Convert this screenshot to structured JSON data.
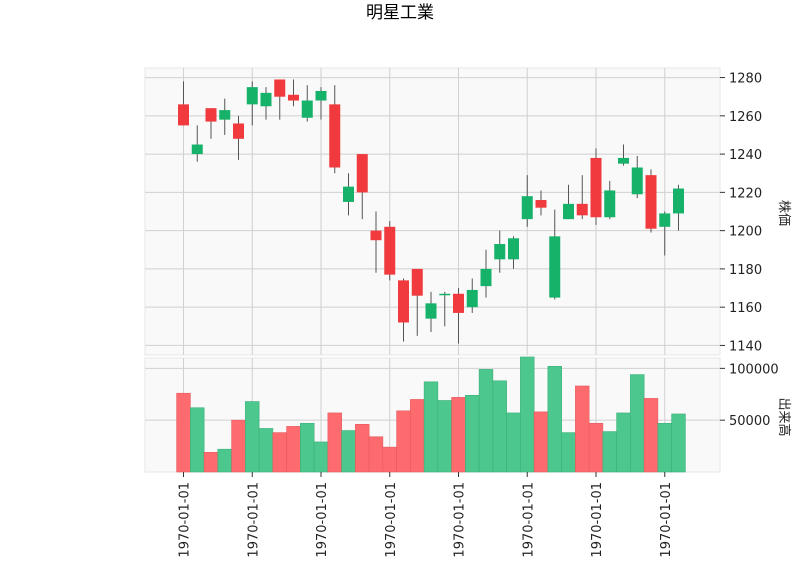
{
  "chart_data": {
    "type": "candlestick",
    "title": "明星工業",
    "colors": {
      "up": "#17b26a",
      "down": "#f03a3e",
      "up_volume": "#4cc78d",
      "down_volume": "#fd6b6e",
      "wick": "#555555",
      "panel_bg": "#f9f9f9",
      "grid": "#d0d0d0"
    },
    "x_tick_labels": [
      "1970-01-01",
      "1970-01-01",
      "1970-01-01",
      "1970-01-01",
      "1970-01-01",
      "1970-01-01",
      "1970-01-01",
      "1970-01-01"
    ],
    "price_panel": {
      "ylabel": "株価",
      "ylim": [
        1135,
        1285
      ],
      "yticks": [
        1140,
        1160,
        1180,
        1200,
        1220,
        1240,
        1260,
        1280
      ],
      "grid": true
    },
    "volume_panel": {
      "ylabel": "出来高",
      "ylim": [
        0,
        110000
      ],
      "yticks": [
        50000,
        100000
      ],
      "tick_labels": [
        "50000",
        "100000"
      ],
      "grid": true
    },
    "candles": [
      {
        "open": 1266,
        "high": 1278,
        "low": 1255,
        "close": 1255,
        "volume": 76000
      },
      {
        "open": 1240,
        "high": 1255,
        "low": 1236,
        "close": 1245,
        "volume": 62000
      },
      {
        "open": 1264,
        "high": 1264,
        "low": 1248,
        "close": 1257,
        "volume": 19000
      },
      {
        "open": 1258,
        "high": 1269,
        "low": 1250,
        "close": 1263,
        "volume": 22000
      },
      {
        "open": 1256,
        "high": 1260,
        "low": 1237,
        "close": 1248,
        "volume": 50000
      },
      {
        "open": 1266,
        "high": 1278,
        "low": 1255,
        "close": 1275,
        "volume": 68000
      },
      {
        "open": 1265,
        "high": 1275,
        "low": 1258,
        "close": 1272,
        "volume": 42000
      },
      {
        "open": 1279,
        "high": 1279,
        "low": 1258,
        "close": 1270,
        "volume": 38000
      },
      {
        "open": 1271,
        "high": 1279,
        "low": 1265,
        "close": 1268,
        "volume": 44000
      },
      {
        "open": 1259,
        "high": 1276,
        "low": 1257,
        "close": 1268,
        "volume": 47000
      },
      {
        "open": 1268,
        "high": 1275,
        "low": 1258,
        "close": 1273,
        "volume": 29000
      },
      {
        "open": 1266,
        "high": 1276,
        "low": 1230,
        "close": 1233,
        "volume": 57000
      },
      {
        "open": 1215,
        "high": 1230,
        "low": 1208,
        "close": 1223,
        "volume": 40000
      },
      {
        "open": 1240,
        "high": 1240,
        "low": 1206,
        "close": 1220,
        "volume": 46000
      },
      {
        "open": 1200,
        "high": 1210,
        "low": 1178,
        "close": 1195,
        "volume": 34000
      },
      {
        "open": 1202,
        "high": 1205,
        "low": 1174,
        "close": 1177,
        "volume": 24000
      },
      {
        "open": 1174,
        "high": 1175,
        "low": 1142,
        "close": 1152,
        "volume": 59000
      },
      {
        "open": 1180,
        "high": 1180,
        "low": 1145,
        "close": 1166,
        "volume": 70000
      },
      {
        "open": 1154,
        "high": 1168,
        "low": 1147,
        "close": 1162,
        "volume": 87000
      },
      {
        "open": 1167,
        "high": 1168,
        "low": 1150,
        "close": 1167,
        "volume": 69000
      },
      {
        "open": 1167,
        "high": 1170,
        "low": 1141,
        "close": 1157,
        "volume": 72000
      },
      {
        "open": 1160,
        "high": 1175,
        "low": 1157,
        "close": 1169,
        "volume": 74000
      },
      {
        "open": 1171,
        "high": 1190,
        "low": 1165,
        "close": 1180,
        "volume": 99000
      },
      {
        "open": 1185,
        "high": 1200,
        "low": 1178,
        "close": 1193,
        "volume": 88000
      },
      {
        "open": 1185,
        "high": 1197,
        "low": 1180,
        "close": 1196,
        "volume": 57000
      },
      {
        "open": 1206,
        "high": 1229,
        "low": 1202,
        "close": 1218,
        "volume": 111000
      },
      {
        "open": 1216,
        "high": 1221,
        "low": 1208,
        "close": 1212,
        "volume": 58000
      },
      {
        "open": 1165,
        "high": 1211,
        "low": 1164,
        "close": 1197,
        "volume": 102000
      },
      {
        "open": 1206,
        "high": 1224,
        "low": 1206,
        "close": 1214,
        "volume": 38000
      },
      {
        "open": 1214,
        "high": 1229,
        "low": 1206,
        "close": 1208,
        "volume": 83000
      },
      {
        "open": 1238,
        "high": 1243,
        "low": 1203,
        "close": 1207,
        "volume": 47000
      },
      {
        "open": 1207,
        "high": 1226,
        "low": 1206,
        "close": 1221,
        "volume": 39000
      },
      {
        "open": 1235,
        "high": 1245,
        "low": 1234,
        "close": 1238,
        "volume": 57000
      },
      {
        "open": 1219,
        "high": 1239,
        "low": 1217,
        "close": 1233,
        "volume": 94000
      },
      {
        "open": 1229,
        "high": 1232,
        "low": 1199,
        "close": 1201,
        "volume": 71000
      },
      {
        "open": 1202,
        "high": 1210,
        "low": 1187,
        "close": 1209,
        "volume": 47000
      },
      {
        "open": 1209,
        "high": 1224,
        "low": 1200,
        "close": 1222,
        "volume": 56000
      }
    ]
  }
}
